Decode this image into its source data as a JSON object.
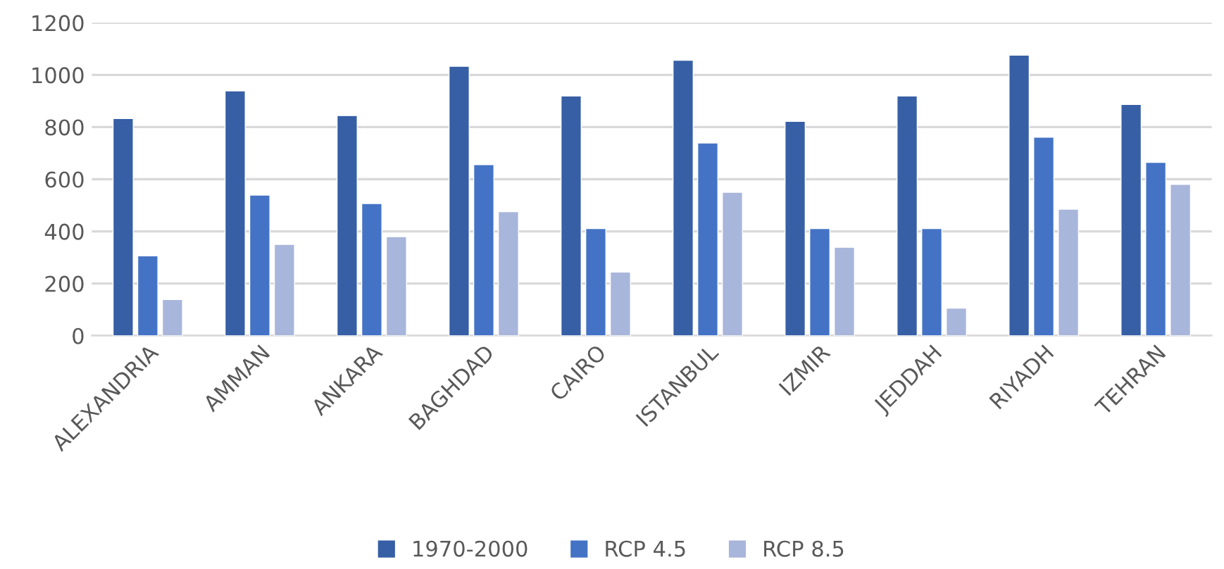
{
  "chart_data": {
    "type": "bar",
    "categories": [
      "ALEXANDRIA",
      "AMMAN",
      "ANKARA",
      "BAGHDAD",
      "CAIRO",
      "ISTANBUL",
      "IZMIR",
      "JEDDAH",
      "RIYADH",
      "TEHRAN"
    ],
    "series": [
      {
        "name": "1970-2000",
        "color": "#365fa5",
        "values": [
          833,
          939,
          844,
          1033,
          919,
          1056,
          822,
          919,
          1076,
          887
        ]
      },
      {
        "name": "RCP 4.5",
        "color": "#4473c5",
        "values": [
          306,
          539,
          507,
          656,
          411,
          739,
          411,
          411,
          761,
          665
        ]
      },
      {
        "name": "RCP 8.5",
        "color": "#a9b6db",
        "values": [
          139,
          350,
          380,
          476,
          244,
          550,
          339,
          106,
          485,
          580
        ]
      }
    ],
    "ylim": [
      0,
      1200
    ],
    "yticks": [
      0,
      200,
      400,
      600,
      800,
      1000,
      1200
    ],
    "grid": "y",
    "legend": "bottom"
  }
}
